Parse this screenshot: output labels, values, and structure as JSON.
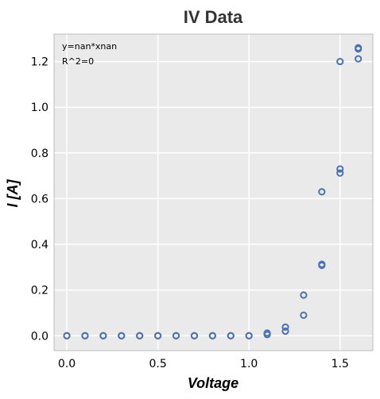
{
  "chart_data": {
    "type": "scatter",
    "title": "IV Data",
    "xlabel": "Voltage",
    "ylabel": "I [A]",
    "xlim": [
      -0.07,
      1.68
    ],
    "ylim": [
      -0.065,
      1.32
    ],
    "xticks": [
      0.0,
      0.5,
      1.0,
      1.5
    ],
    "xtick_labels": [
      "0.0",
      "0.5",
      "1.0",
      "1.5"
    ],
    "yticks": [
      0.0,
      0.2,
      0.4,
      0.6,
      0.8,
      1.0,
      1.2
    ],
    "ytick_labels": [
      "0.0",
      "0.2",
      "0.4",
      "0.6",
      "0.8",
      "1.0",
      "1.2"
    ],
    "grid": true,
    "annotations": [
      "y=nan*xnan",
      "R^2=0"
    ],
    "marker_color": "#4c72b0",
    "background_color": "#eaeaea",
    "points": [
      {
        "x": 0.0,
        "y": 0.0
      },
      {
        "x": 0.0,
        "y": 0.0
      },
      {
        "x": 0.1,
        "y": 0.0
      },
      {
        "x": 0.1,
        "y": 0.0
      },
      {
        "x": 0.2,
        "y": 0.0
      },
      {
        "x": 0.2,
        "y": 0.0
      },
      {
        "x": 0.3,
        "y": 0.0
      },
      {
        "x": 0.3,
        "y": 0.0
      },
      {
        "x": 0.4,
        "y": 0.0
      },
      {
        "x": 0.4,
        "y": 0.0
      },
      {
        "x": 0.5,
        "y": 0.0
      },
      {
        "x": 0.5,
        "y": 0.0
      },
      {
        "x": 0.6,
        "y": 0.0
      },
      {
        "x": 0.6,
        "y": 0.0
      },
      {
        "x": 0.7,
        "y": 0.0
      },
      {
        "x": 0.7,
        "y": 0.0
      },
      {
        "x": 0.8,
        "y": 0.0
      },
      {
        "x": 0.8,
        "y": 0.0
      },
      {
        "x": 0.9,
        "y": 0.0
      },
      {
        "x": 0.9,
        "y": 0.0
      },
      {
        "x": 1.0,
        "y": 0.0
      },
      {
        "x": 1.0,
        "y": 0.0
      },
      {
        "x": 1.1,
        "y": 0.005
      },
      {
        "x": 1.1,
        "y": 0.012
      },
      {
        "x": 1.2,
        "y": 0.02
      },
      {
        "x": 1.2,
        "y": 0.038
      },
      {
        "x": 1.3,
        "y": 0.09
      },
      {
        "x": 1.3,
        "y": 0.178
      },
      {
        "x": 1.4,
        "y": 0.308
      },
      {
        "x": 1.4,
        "y": 0.313
      },
      {
        "x": 1.4,
        "y": 0.63
      },
      {
        "x": 1.5,
        "y": 0.712
      },
      {
        "x": 1.5,
        "y": 0.73
      },
      {
        "x": 1.5,
        "y": 1.2
      },
      {
        "x": 1.6,
        "y": 1.212
      },
      {
        "x": 1.6,
        "y": 1.255
      },
      {
        "x": 1.6,
        "y": 1.26
      }
    ]
  }
}
